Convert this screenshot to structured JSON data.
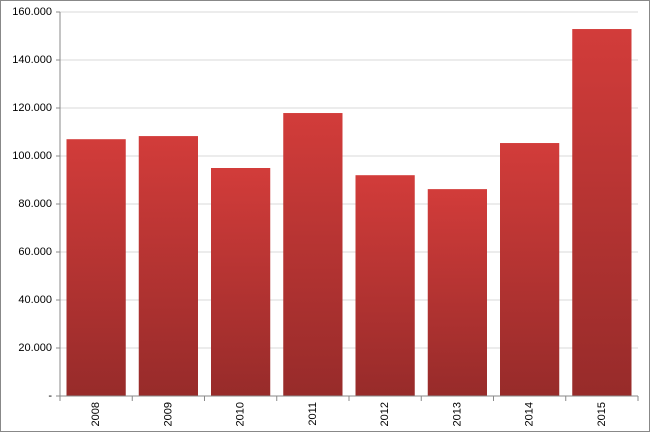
{
  "chart_data": {
    "type": "bar",
    "categories": [
      "2008",
      "2009",
      "2010",
      "2011",
      "2012",
      "2013",
      "2014",
      "2015"
    ],
    "values": [
      107000,
      108300,
      95000,
      117900,
      92000,
      86200,
      105400,
      152900
    ],
    "color": "#d23c3a",
    "ylim": [
      0,
      160000
    ],
    "yticks": [
      {
        "value": 0,
        "label": "-"
      },
      {
        "value": 20000,
        "label": "20.000"
      },
      {
        "value": 40000,
        "label": "40.000"
      },
      {
        "value": 60000,
        "label": "60.000"
      },
      {
        "value": 80000,
        "label": "80.000"
      },
      {
        "value": 100000,
        "label": "100.000"
      },
      {
        "value": 120000,
        "label": "120.000"
      },
      {
        "value": 140000,
        "label": "140.000"
      },
      {
        "value": 160000,
        "label": "160.000"
      }
    ],
    "grid": true
  }
}
